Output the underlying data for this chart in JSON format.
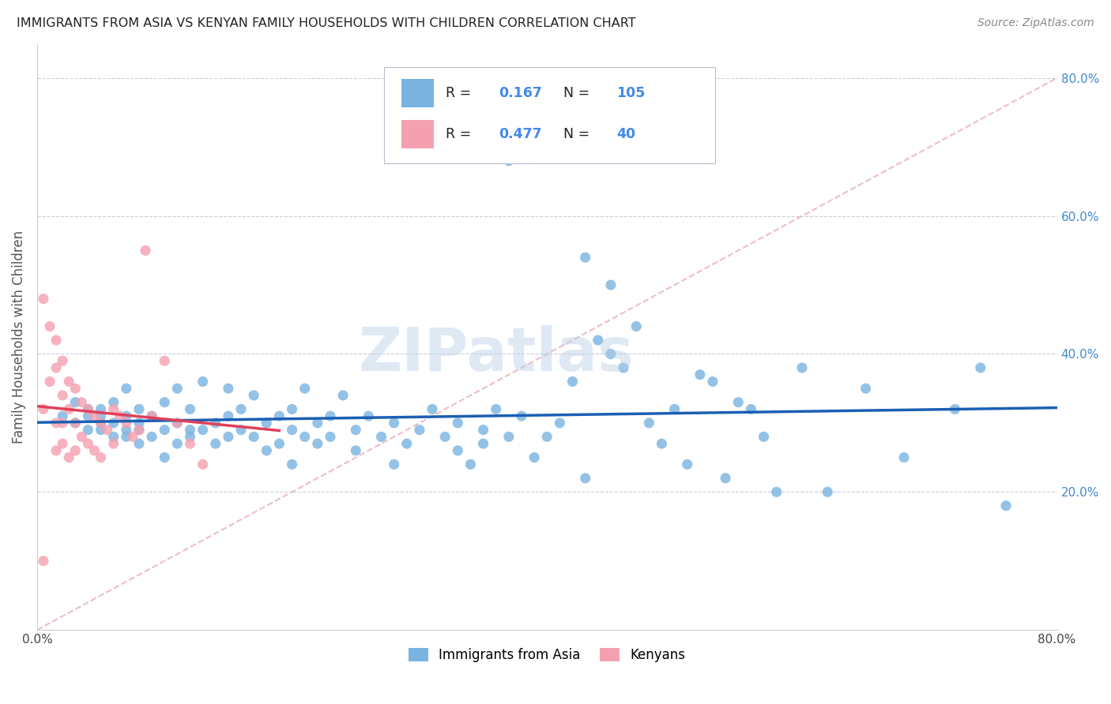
{
  "title": "IMMIGRANTS FROM ASIA VS KENYAN FAMILY HOUSEHOLDS WITH CHILDREN CORRELATION CHART",
  "source": "Source: ZipAtlas.com",
  "ylabel": "Family Households with Children",
  "legend_bottom": [
    "Immigrants from Asia",
    "Kenyans"
  ],
  "r_asia": 0.167,
  "n_asia": 105,
  "r_kenyan": 0.477,
  "n_kenyan": 40,
  "xlim": [
    0,
    0.8
  ],
  "ylim": [
    0,
    0.85
  ],
  "ytick_positions": [
    0.2,
    0.4,
    0.6,
    0.8
  ],
  "ytick_labels": [
    "20.0%",
    "40.0%",
    "60.0%",
    "80.0%"
  ],
  "color_asia": "#7ab3e0",
  "color_kenyan": "#f4a0b0",
  "color_asia_line": "#1a5fb4",
  "color_kenyan_line": "#e0405a",
  "color_diag_line": "#e8b4bc",
  "watermark": "ZIPatlas",
  "asia_scatter_x": [
    0.02,
    0.03,
    0.03,
    0.04,
    0.04,
    0.04,
    0.05,
    0.05,
    0.05,
    0.05,
    0.06,
    0.06,
    0.06,
    0.07,
    0.07,
    0.07,
    0.07,
    0.08,
    0.08,
    0.08,
    0.08,
    0.09,
    0.09,
    0.1,
    0.1,
    0.1,
    0.11,
    0.11,
    0.11,
    0.12,
    0.12,
    0.12,
    0.13,
    0.13,
    0.14,
    0.14,
    0.15,
    0.15,
    0.15,
    0.16,
    0.16,
    0.17,
    0.17,
    0.18,
    0.18,
    0.19,
    0.19,
    0.2,
    0.2,
    0.2,
    0.21,
    0.21,
    0.22,
    0.22,
    0.23,
    0.23,
    0.24,
    0.25,
    0.25,
    0.26,
    0.27,
    0.28,
    0.28,
    0.29,
    0.3,
    0.31,
    0.32,
    0.33,
    0.33,
    0.34,
    0.35,
    0.35,
    0.36,
    0.37,
    0.38,
    0.39,
    0.4,
    0.41,
    0.42,
    0.43,
    0.44,
    0.45,
    0.46,
    0.47,
    0.48,
    0.49,
    0.5,
    0.51,
    0.52,
    0.53,
    0.54,
    0.55,
    0.56,
    0.57,
    0.58,
    0.6,
    0.62,
    0.65,
    0.68,
    0.72,
    0.74,
    0.76,
    0.37,
    0.43,
    0.45
  ],
  "asia_scatter_y": [
    0.31,
    0.3,
    0.33,
    0.31,
    0.29,
    0.32,
    0.3,
    0.32,
    0.29,
    0.31,
    0.28,
    0.3,
    0.33,
    0.29,
    0.31,
    0.35,
    0.28,
    0.3,
    0.32,
    0.27,
    0.29,
    0.28,
    0.31,
    0.25,
    0.33,
    0.29,
    0.27,
    0.3,
    0.35,
    0.29,
    0.32,
    0.28,
    0.29,
    0.36,
    0.3,
    0.27,
    0.28,
    0.31,
    0.35,
    0.29,
    0.32,
    0.28,
    0.34,
    0.3,
    0.26,
    0.31,
    0.27,
    0.24,
    0.32,
    0.29,
    0.28,
    0.35,
    0.3,
    0.27,
    0.31,
    0.28,
    0.34,
    0.29,
    0.26,
    0.31,
    0.28,
    0.3,
    0.24,
    0.27,
    0.29,
    0.32,
    0.28,
    0.3,
    0.26,
    0.24,
    0.29,
    0.27,
    0.32,
    0.28,
    0.31,
    0.25,
    0.28,
    0.3,
    0.36,
    0.22,
    0.42,
    0.4,
    0.38,
    0.44,
    0.3,
    0.27,
    0.32,
    0.24,
    0.37,
    0.36,
    0.22,
    0.33,
    0.32,
    0.28,
    0.2,
    0.38,
    0.2,
    0.35,
    0.25,
    0.32,
    0.38,
    0.18,
    0.68,
    0.54,
    0.5
  ],
  "kenyan_scatter_x": [
    0.005,
    0.005,
    0.01,
    0.01,
    0.015,
    0.015,
    0.015,
    0.015,
    0.02,
    0.02,
    0.02,
    0.02,
    0.025,
    0.025,
    0.025,
    0.03,
    0.03,
    0.03,
    0.035,
    0.035,
    0.04,
    0.04,
    0.045,
    0.045,
    0.05,
    0.05,
    0.055,
    0.06,
    0.06,
    0.065,
    0.07,
    0.075,
    0.08,
    0.085,
    0.09,
    0.1,
    0.11,
    0.12,
    0.13,
    0.005
  ],
  "kenyan_scatter_y": [
    0.48,
    0.32,
    0.44,
    0.36,
    0.42,
    0.38,
    0.3,
    0.26,
    0.39,
    0.34,
    0.3,
    0.27,
    0.36,
    0.32,
    0.25,
    0.35,
    0.3,
    0.26,
    0.33,
    0.28,
    0.32,
    0.27,
    0.31,
    0.26,
    0.3,
    0.25,
    0.29,
    0.32,
    0.27,
    0.31,
    0.3,
    0.28,
    0.29,
    0.55,
    0.31,
    0.39,
    0.3,
    0.27,
    0.24,
    0.1
  ]
}
